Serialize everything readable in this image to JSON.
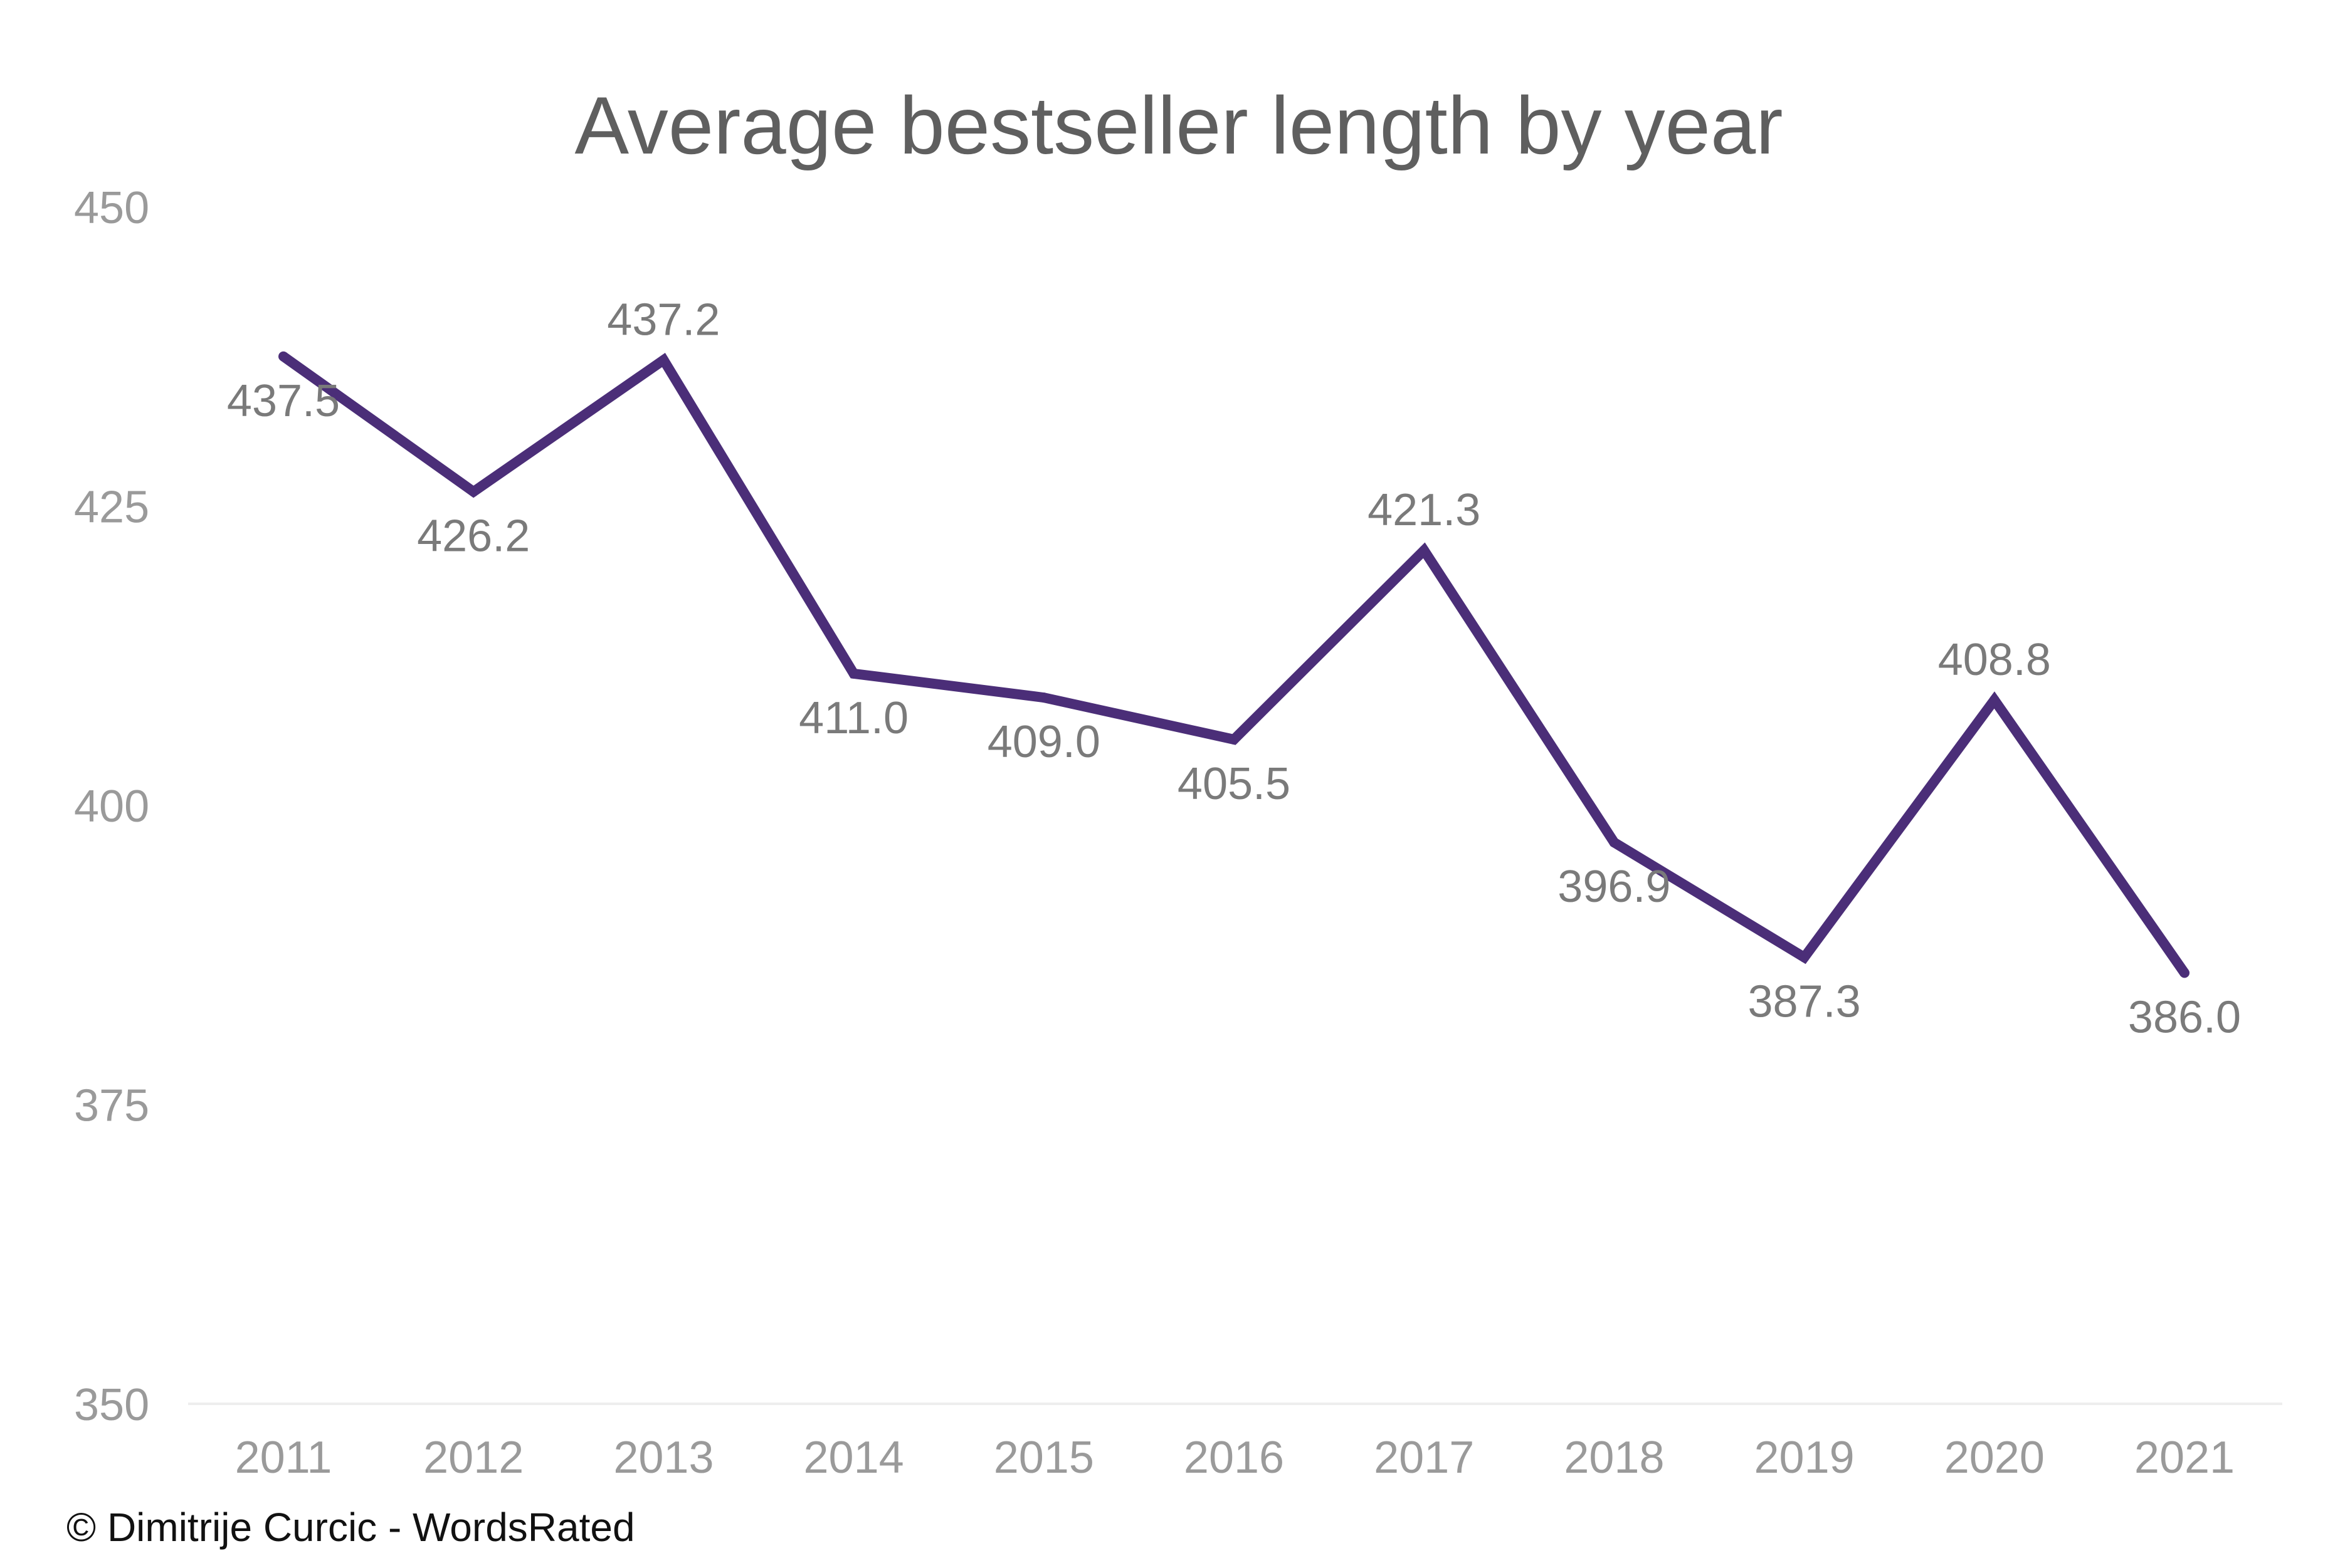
{
  "chart_data": {
    "type": "line",
    "title": "Average bestseller length by year",
    "xlabel": "",
    "ylabel": "",
    "categories": [
      "2011",
      "2012",
      "2013",
      "2014",
      "2015",
      "2016",
      "2017",
      "2018",
      "2019",
      "2020",
      "2021"
    ],
    "series": [
      {
        "values": [
          437.5,
          426.2,
          437.2,
          411.0,
          409.0,
          405.5,
          421.3,
          396.9,
          387.3,
          408.8,
          386.0
        ],
        "labels": [
          "437.5",
          "426.2",
          "437.2",
          "411.0",
          "409.0",
          "405.5",
          "421.3",
          "396.9",
          "387.3",
          "408.8",
          "386.0"
        ],
        "color": "#4b2e78"
      }
    ],
    "ylim": [
      350,
      450
    ],
    "yticks": [
      "350",
      "375",
      "400",
      "425",
      "450"
    ],
    "grid": false,
    "legend": "none"
  },
  "colors": {
    "line": "#4b2e78",
    "baseline": "#eeeeee"
  },
  "footer": {
    "copyright": "© Dimitrije Curcic - WordsRated"
  }
}
